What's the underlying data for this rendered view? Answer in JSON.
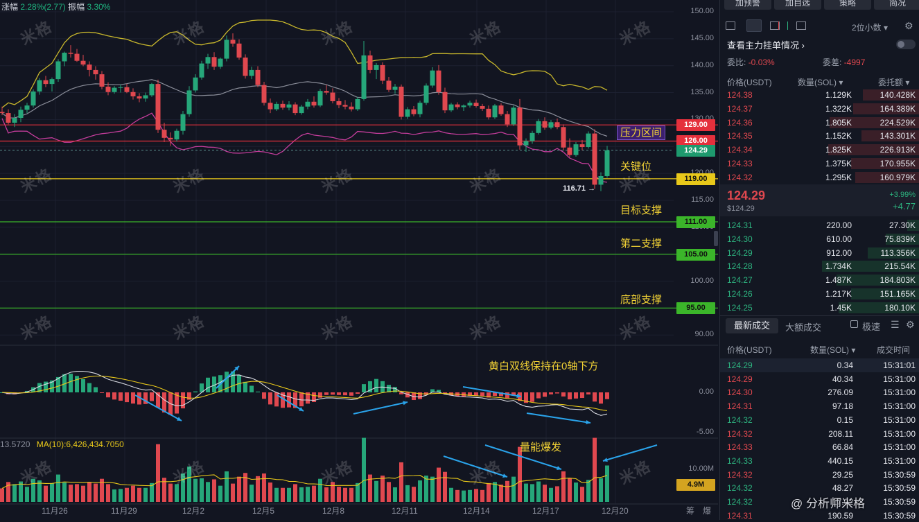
{
  "header": {
    "change_label": "涨幅",
    "change_value": "2.28%(2.77)",
    "amplitude_label": "振幅",
    "amplitude_value": "3.30%"
  },
  "chart_data": [
    {
      "type": "candlestick",
      "title": "",
      "x_ticks": [
        "11月26",
        "11月29",
        "12月2",
        "12月5",
        "12月8",
        "12月11",
        "12月14",
        "12月17",
        "12月20"
      ],
      "y_ticks": [
        150,
        145,
        140,
        135,
        130,
        125,
        120,
        115,
        110,
        105,
        100,
        95,
        90
      ],
      "y_range": [
        88,
        152
      ],
      "levels": [
        {
          "label": "压力区间",
          "value": 129.0,
          "color": "#e5303c"
        },
        {
          "label": "",
          "value": 126.0,
          "color": "#e5303c"
        },
        {
          "label": "关键位",
          "value": 119.0,
          "color": "#e8c81a"
        },
        {
          "label": "目标支撑",
          "value": 111.0,
          "color": "#3bb52a"
        },
        {
          "label": "第二支撑",
          "value": 105.0,
          "color": "#3bb52a"
        },
        {
          "label": "底部支撑",
          "value": 95.0,
          "color": "#3bb52a"
        }
      ],
      "last_price": 124.29,
      "low_marker": "116.71",
      "candles": [
        [
          131.4,
          132.4,
          130.8,
          131.2
        ],
        [
          131.2,
          131.9,
          129.1,
          129.4
        ],
        [
          129.4,
          131.0,
          128.6,
          130.3
        ],
        [
          130.3,
          132.4,
          129.5,
          131.8
        ],
        [
          131.8,
          133.1,
          131.2,
          132.6
        ],
        [
          132.6,
          135.6,
          132.2,
          135.2
        ],
        [
          135.2,
          137.7,
          134.6,
          137.3
        ],
        [
          137.3,
          138.1,
          136.0,
          136.6
        ],
        [
          136.6,
          137.8,
          135.2,
          137.5
        ],
        [
          137.5,
          141.2,
          137.0,
          140.8
        ],
        [
          140.8,
          142.6,
          139.9,
          142.4
        ],
        [
          142.4,
          143.8,
          141.5,
          142.2
        ],
        [
          142.2,
          143.1,
          140.7,
          140.9
        ],
        [
          140.9,
          142.0,
          139.9,
          140.2
        ],
        [
          140.2,
          140.8,
          138.0,
          139.2
        ],
        [
          139.2,
          139.9,
          137.4,
          138.4
        ],
        [
          138.4,
          139.0,
          135.6,
          136.1
        ],
        [
          136.1,
          136.9,
          134.5,
          135.1
        ],
        [
          135.1,
          136.2,
          134.8,
          135.9
        ],
        [
          135.9,
          136.5,
          135.0,
          136.0
        ],
        [
          136.0,
          136.6,
          134.9,
          135.1
        ],
        [
          135.1,
          135.8,
          133.7,
          134.3
        ],
        [
          134.3,
          134.9,
          133.2,
          133.9
        ],
        [
          133.9,
          135.0,
          133.3,
          134.5
        ],
        [
          134.5,
          136.8,
          134.2,
          136.6
        ],
        [
          136.6,
          137.4,
          127.5,
          128.1
        ],
        [
          128.1,
          129.4,
          125.8,
          126.6
        ],
        [
          126.6,
          127.6,
          125.1,
          126.3
        ],
        [
          126.3,
          128.3,
          125.9,
          127.9
        ],
        [
          127.9,
          131.6,
          127.2,
          131.0
        ],
        [
          131.0,
          136.2,
          130.5,
          135.4
        ],
        [
          135.4,
          138.4,
          135.0,
          137.8
        ],
        [
          137.8,
          140.9,
          137.4,
          140.4
        ],
        [
          140.4,
          142.2,
          139.4,
          141.6
        ],
        [
          141.6,
          142.5,
          139.2,
          139.8
        ],
        [
          139.8,
          141.5,
          139.4,
          141.3
        ],
        [
          141.3,
          145.6,
          140.8,
          144.8
        ],
        [
          144.8,
          146.0,
          143.5,
          144.1
        ],
        [
          144.1,
          144.9,
          141.1,
          141.5
        ],
        [
          141.5,
          142.1,
          137.6,
          138.1
        ],
        [
          138.1,
          139.8,
          137.5,
          139.2
        ],
        [
          139.2,
          139.9,
          136.0,
          136.4
        ],
        [
          136.4,
          137.0,
          132.6,
          133.1
        ],
        [
          133.1,
          133.9,
          131.2,
          131.9
        ],
        [
          131.9,
          133.3,
          131.6,
          132.9
        ],
        [
          132.9,
          133.5,
          131.8,
          132.2
        ],
        [
          132.2,
          133.4,
          131.7,
          132.8
        ],
        [
          132.8,
          133.2,
          130.8,
          131.2
        ],
        [
          131.2,
          132.7,
          130.9,
          132.4
        ],
        [
          132.4,
          133.8,
          131.9,
          133.3
        ],
        [
          133.3,
          134.3,
          132.2,
          132.6
        ],
        [
          132.6,
          135.7,
          132.3,
          135.3
        ],
        [
          135.3,
          136.4,
          134.6,
          135.0
        ],
        [
          135.0,
          135.8,
          133.0,
          133.4
        ],
        [
          133.4,
          134.0,
          132.1,
          132.7
        ],
        [
          132.7,
          133.6,
          131.9,
          132.4
        ],
        [
          132.4,
          133.2,
          131.5,
          131.9
        ],
        [
          131.9,
          134.2,
          131.6,
          133.8
        ],
        [
          133.8,
          144.6,
          133.5,
          141.9
        ],
        [
          141.9,
          142.8,
          138.6,
          139.2
        ],
        [
          139.2,
          140.5,
          137.5,
          140.1
        ],
        [
          140.1,
          140.6,
          136.6,
          137.2
        ],
        [
          137.2,
          137.9,
          135.1,
          135.5
        ],
        [
          135.5,
          136.6,
          134.8,
          136.1
        ],
        [
          136.1,
          136.5,
          130.0,
          130.5
        ],
        [
          130.5,
          132.3,
          130.1,
          131.9
        ],
        [
          131.9,
          132.5,
          130.6,
          131.0
        ],
        [
          131.0,
          133.5,
          130.4,
          133.1
        ],
        [
          133.1,
          136.7,
          132.7,
          136.3
        ],
        [
          136.3,
          139.7,
          135.9,
          139.1
        ],
        [
          139.1,
          140.1,
          134.6,
          135.1
        ],
        [
          135.1,
          135.9,
          131.2,
          131.7
        ],
        [
          131.7,
          133.1,
          131.4,
          132.8
        ],
        [
          132.8,
          133.2,
          131.9,
          132.3
        ],
        [
          132.3,
          132.8,
          131.6,
          132.6
        ],
        [
          132.6,
          133.5,
          132.2,
          133.1
        ],
        [
          133.1,
          133.7,
          132.2,
          132.5
        ],
        [
          132.5,
          132.9,
          131.6,
          132.0
        ],
        [
          132.0,
          132.6,
          130.0,
          130.4
        ],
        [
          130.4,
          132.9,
          130.1,
          132.6
        ],
        [
          132.6,
          133.0,
          130.7,
          131.0
        ],
        [
          131.0,
          131.6,
          128.6,
          129.1
        ],
        [
          129.1,
          132.6,
          128.8,
          132.2
        ],
        [
          132.2,
          133.8,
          124.4,
          125.2
        ],
        [
          125.2,
          126.5,
          124.0,
          126.0
        ],
        [
          126.0,
          127.9,
          125.5,
          127.5
        ],
        [
          127.5,
          130.1,
          127.2,
          129.7
        ],
        [
          129.7,
          130.4,
          128.1,
          128.5
        ],
        [
          128.5,
          129.9,
          128.2,
          129.5
        ],
        [
          129.5,
          130.2,
          128.2,
          128.6
        ],
        [
          128.6,
          129.1,
          124.3,
          124.8
        ],
        [
          124.8,
          126.5,
          123.0,
          123.4
        ],
        [
          123.4,
          125.8,
          123.1,
          125.4
        ],
        [
          125.4,
          126.2,
          124.3,
          124.9
        ],
        [
          124.9,
          127.8,
          124.6,
          127.4
        ],
        [
          127.4,
          128.2,
          117.1,
          117.9
        ],
        [
          117.9,
          120.2,
          116.7,
          119.5
        ],
        [
          119.5,
          125.1,
          119.2,
          124.29
        ]
      ]
    },
    {
      "type": "bar",
      "title": "",
      "y_ticks": [
        "0.00",
        "-5.00"
      ],
      "annotation": "黄白双线保持在0轴下方"
    },
    {
      "type": "bar",
      "title": "",
      "ma_label": "MA(10):6,426,434.7050",
      "left_value": "13.5720",
      "y_ticks": [
        "10.00M"
      ],
      "current_value": "4.9M",
      "annotation": "量能爆发"
    }
  ],
  "bottom_right": [
    "筹",
    "爆"
  ],
  "panel": {
    "buttons": [
      "加预警",
      "加自选",
      "策略",
      "简况"
    ],
    "decimals": "2位小数",
    "main_orders_link": "查看主力挂单情况",
    "wei_bi_label": "委比:",
    "wei_bi_value": "-0.03%",
    "wei_cha_label": "委差:",
    "wei_cha_value": "-4997",
    "headers": [
      "价格(USDT)",
      "数量(SOL)",
      "委托额"
    ],
    "asks": [
      [
        "124.38",
        "1.129K",
        "140.428K",
        0.55
      ],
      [
        "124.37",
        "1.322K",
        "164.389K",
        0.64
      ],
      [
        "124.36",
        "1.805K",
        "224.529K",
        0.87
      ],
      [
        "124.35",
        "1.152K",
        "143.301K",
        0.56
      ],
      [
        "124.34",
        "1.825K",
        "226.913K",
        0.88
      ],
      [
        "124.33",
        "1.375K",
        "170.955K",
        0.66
      ],
      [
        "124.32",
        "1.295K",
        "160.979K",
        0.62
      ]
    ],
    "last_price": "124.29",
    "last_price_usd": "$124.29",
    "change_pct": "+3.99%",
    "change_abs": "+4.77",
    "bids": [
      [
        "124.31",
        "220.00",
        "27.30K",
        0.12
      ],
      [
        "124.30",
        "610.00",
        "75.839K",
        0.33
      ],
      [
        "124.29",
        "912.00",
        "113.356K",
        0.5
      ],
      [
        "124.28",
        "1.734K",
        "215.54K",
        0.94
      ],
      [
        "124.27",
        "1.487K",
        "184.803K",
        0.8
      ],
      [
        "124.26",
        "1.217K",
        "151.165K",
        0.66
      ],
      [
        "124.25",
        "1.45K",
        "180.10K",
        0.78
      ]
    ],
    "trade_tabs": [
      "最新成交",
      "大额成交"
    ],
    "fast_label": "极速",
    "trade_headers": [
      "价格(USDT)",
      "数量(SOL)",
      "成交时间"
    ],
    "trades": [
      [
        "124.29",
        "0.34",
        "15:31:01",
        "g"
      ],
      [
        "124.29",
        "40.34",
        "15:31:00",
        "r"
      ],
      [
        "124.30",
        "276.09",
        "15:31:00",
        "r"
      ],
      [
        "124.31",
        "97.18",
        "15:31:00",
        "r"
      ],
      [
        "124.32",
        "0.15",
        "15:31:00",
        "g"
      ],
      [
        "124.32",
        "208.11",
        "15:31:00",
        "r"
      ],
      [
        "124.33",
        "66.84",
        "15:31:00",
        "r"
      ],
      [
        "124.33",
        "440.15",
        "15:31:00",
        "g"
      ],
      [
        "124.32",
        "29.25",
        "15:30:59",
        "r"
      ],
      [
        "124.32",
        "48.27",
        "15:30:59",
        "g"
      ],
      [
        "124.32",
        "17.02",
        "15:30:59",
        "g"
      ],
      [
        "124.31",
        "190.59",
        "15:30:59",
        "r"
      ]
    ]
  },
  "watermark": "米格",
  "credit": "@ 分析师米格"
}
